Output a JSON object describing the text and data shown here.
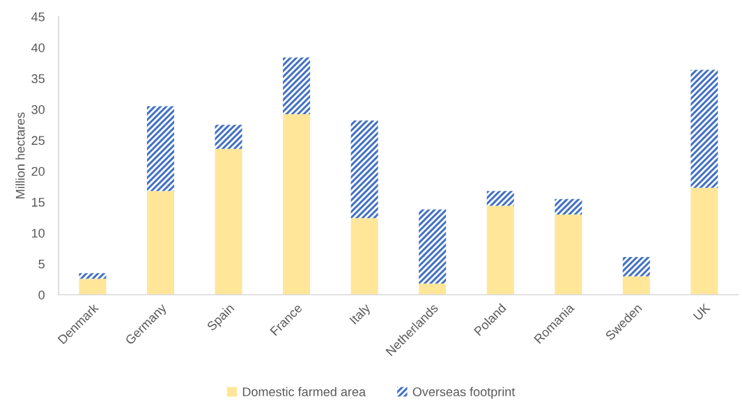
{
  "chart_data": {
    "type": "bar",
    "stacked": true,
    "ylabel": "Million hectares",
    "categories": [
      "Denmark",
      "Germany",
      "Spain",
      "France",
      "Italy",
      "Netherlands",
      "Poland",
      "Romania",
      "Sweden",
      "UK"
    ],
    "series": [
      {
        "name": "Domestic farmed area",
        "color": "#ffe699",
        "values": [
          2.6,
          16.8,
          23.6,
          29.2,
          12.4,
          1.8,
          14.4,
          13.0,
          3.0,
          17.3
        ]
      },
      {
        "name": "Overseas footprint",
        "color": "#4472c4",
        "values": [
          0.9,
          13.7,
          3.9,
          9.2,
          15.8,
          12.0,
          2.4,
          2.5,
          3.1,
          19.1
        ]
      }
    ],
    "ylim": [
      0,
      45
    ],
    "yticks": [
      0,
      5,
      10,
      15,
      20,
      25,
      30,
      35,
      40,
      45
    ],
    "grid": false,
    "legend": "bottom"
  }
}
